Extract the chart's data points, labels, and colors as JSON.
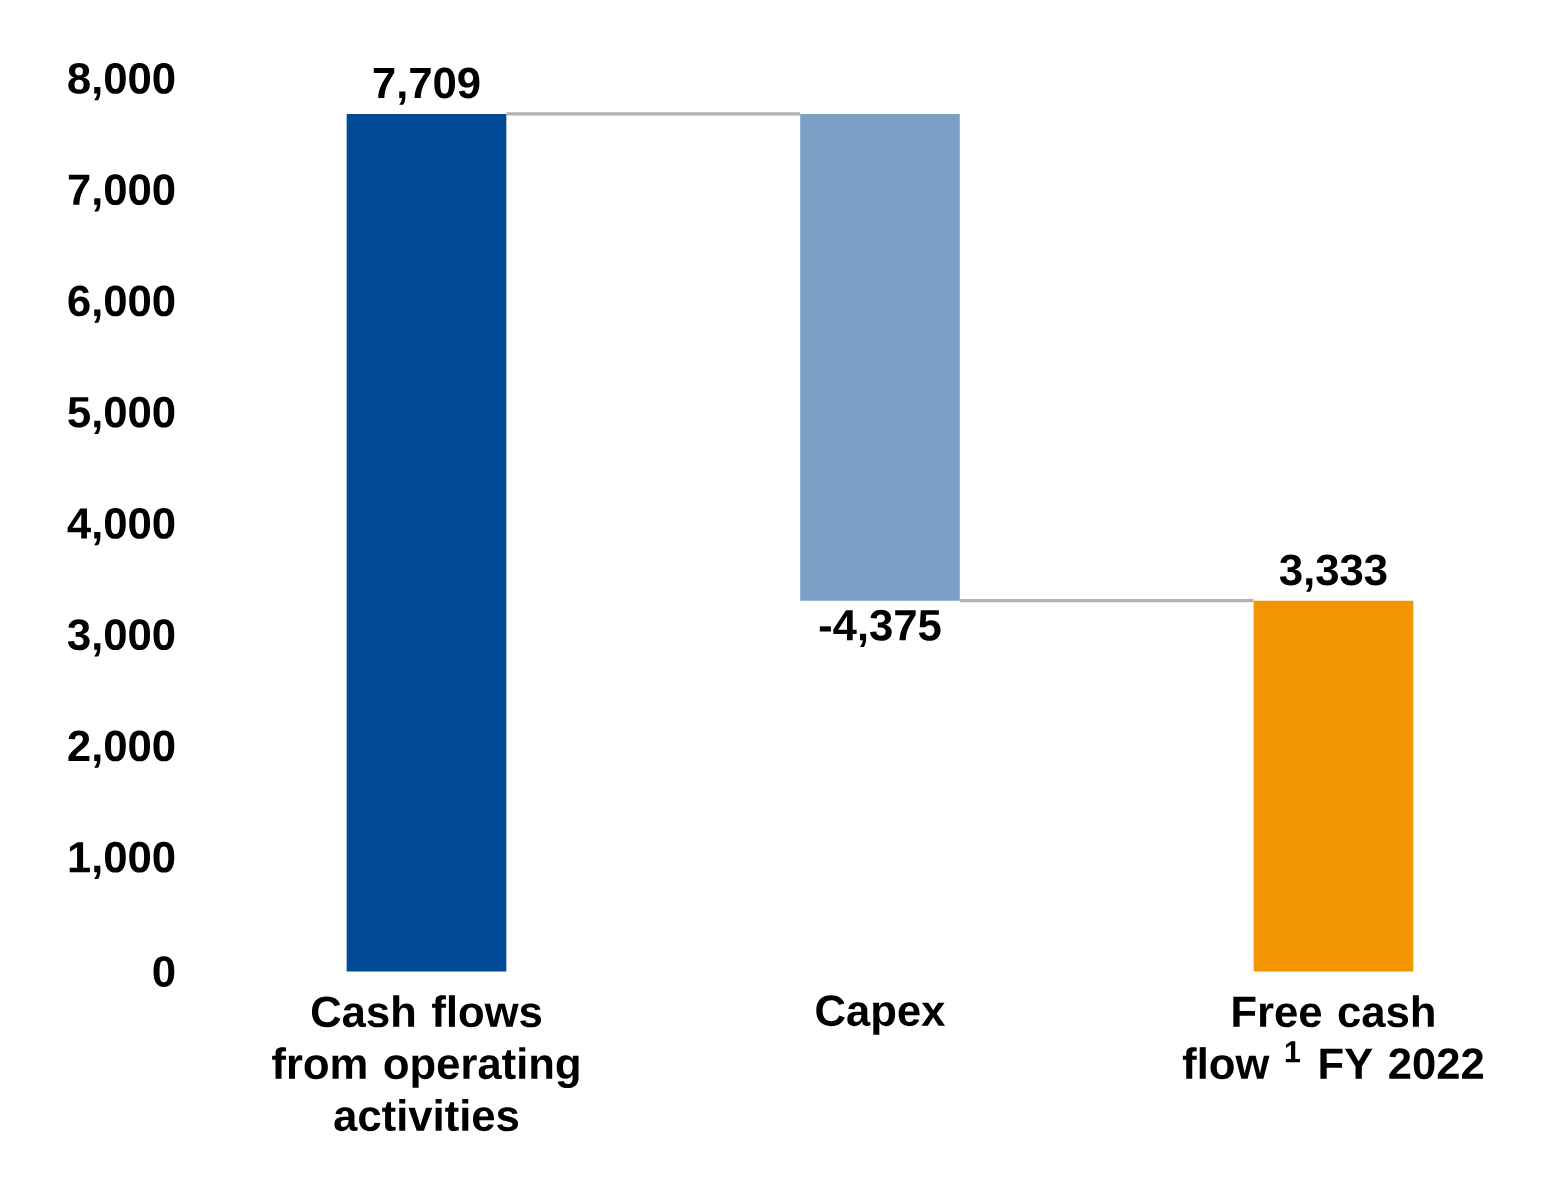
{
  "chart_data": {
    "type": "bar",
    "categories": [
      "Cash flows from operating activities",
      "Capex",
      "Free cash flow $^{1}$ FY 2022"
    ],
    "values": [
      7709,
      -4375,
      3333
    ],
    "base": [
      0,
      7709,
      0
    ],
    "colors": [
      "#004a96",
      "#7ba0c6",
      "#f39500"
    ],
    "value_labels": [
      "7,709",
      "-4,375",
      "3,333"
    ],
    "ylim": [
      0,
      8000
    ],
    "yticks": [
      {
        "value": 0,
        "label": "0"
      },
      {
        "value": 1000,
        "label": "1,000"
      },
      {
        "value": 2000,
        "label": "2,000"
      },
      {
        "value": 3000,
        "label": "3,000"
      },
      {
        "value": 4000,
        "label": "4,000"
      },
      {
        "value": 5000,
        "label": "5,000"
      },
      {
        "value": 6000,
        "label": "6,000"
      },
      {
        "value": 7000,
        "label": "7,000"
      },
      {
        "value": 8000,
        "label": "8,000"
      }
    ],
    "grid": false
  }
}
